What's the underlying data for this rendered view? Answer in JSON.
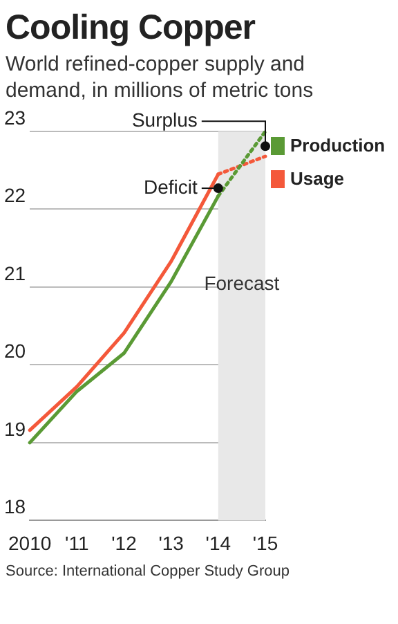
{
  "chart_data": {
    "type": "line",
    "title": "Cooling Copper",
    "subtitle": "World refined-copper supply and demand, in millions of metric tons",
    "categories": [
      "2010",
      "'11",
      "'12",
      "'13",
      "'14",
      "'15"
    ],
    "series": [
      {
        "name": "Production",
        "color": "#5a9a35",
        "values": [
          19.0,
          19.66,
          20.15,
          21.07,
          22.17,
          null
        ]
      },
      {
        "name": "Usage",
        "color": "#f4583a",
        "values": [
          19.16,
          19.72,
          20.41,
          21.33,
          22.45,
          null
        ]
      },
      {
        "color": "#5a9a35",
        "line_style": "dotted",
        "values": [
          null,
          null,
          null,
          null,
          22.17,
          23.0
        ]
      },
      {
        "color": "#f4583a",
        "line_style": "dotted",
        "values": [
          null,
          null,
          null,
          null,
          22.45,
          22.68
        ]
      }
    ],
    "ylim": [
      18,
      23
    ],
    "yticks": [
      18,
      19,
      20,
      21,
      22,
      23
    ],
    "grid": "y",
    "legend": "top right",
    "marker": "none",
    "bands": [
      {
        "axis": "x",
        "from": "'14",
        "to": "'15",
        "label": "Forecast",
        "color": "#e8e8e8"
      }
    ],
    "annotations": [
      {
        "text": "Surplus",
        "x": "'15",
        "y": 22.81
      },
      {
        "text": "Deficit",
        "x": "'14",
        "y": 22.27
      },
      "Source: International Copper Study Group"
    ]
  }
}
